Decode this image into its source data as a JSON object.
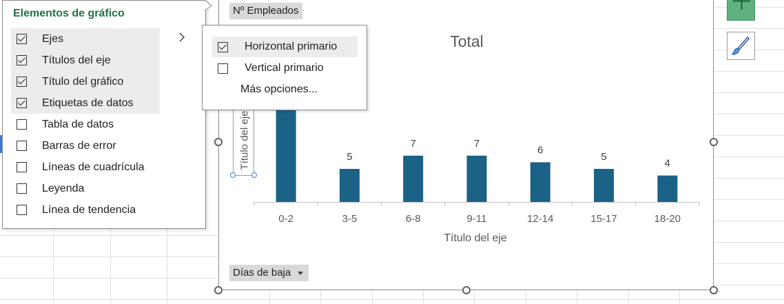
{
  "chart": {
    "field_button_top": "Nº Empleados",
    "field_button_bottom": "Días de baja",
    "title": "Total",
    "x_axis_title": "Título del eje",
    "y_axis_title": "Título del eje",
    "bar_color": "#1b6287"
  },
  "chart_data": {
    "type": "bar",
    "title": "Total",
    "xlabel": "Título del eje",
    "ylabel": "Título del eje",
    "categories": [
      "0-2",
      "3-5",
      "6-8",
      "9-11",
      "12-14",
      "15-17",
      "18-20"
    ],
    "values": [
      null,
      5,
      7,
      7,
      6,
      5,
      4
    ],
    "data_labels": [
      "",
      "5",
      "7",
      "7",
      "6",
      "5",
      "4"
    ]
  },
  "elements_panel": {
    "title": "Elementos de gráfico",
    "items": [
      {
        "label": "Ejes",
        "checked": true
      },
      {
        "label": "Títulos del eje",
        "checked": true
      },
      {
        "label": "Título del gráfico",
        "checked": true
      },
      {
        "label": "Etiquetas de datos",
        "checked": true
      },
      {
        "label": "Tabla de datos",
        "checked": false
      },
      {
        "label": "Barras de error",
        "checked": false
      },
      {
        "label": "Líneas de cuadrícula",
        "checked": false
      },
      {
        "label": "Leyenda",
        "checked": false
      },
      {
        "label": "Línea de tendencia",
        "checked": false
      }
    ]
  },
  "axes_submenu": {
    "items": [
      {
        "label": "Horizontal primario",
        "checked": true
      },
      {
        "label": "Vertical primario",
        "checked": false
      }
    ],
    "more_options": "Más opciones..."
  },
  "side_buttons": {
    "add_icon": "plus-icon",
    "style_icon": "paintbrush-icon",
    "accent": "#5fb27f"
  }
}
